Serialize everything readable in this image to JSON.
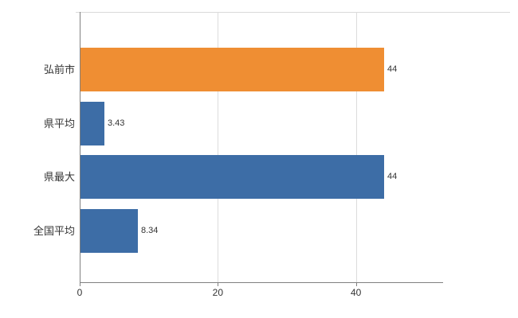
{
  "chart_data": {
    "type": "bar",
    "orientation": "horizontal",
    "title": "",
    "xlabel": "",
    "ylabel": "",
    "categories": [
      "弘前市",
      "県平均",
      "県最大",
      "全国平均"
    ],
    "values": [
      44,
      3.43,
      44,
      8.34
    ],
    "value_labels": [
      "44",
      "3.43",
      "44",
      "8.34"
    ],
    "bar_colors": [
      "#EF8E33",
      "#3D6DA6",
      "#3D6DA6",
      "#3D6DA6"
    ],
    "x_ticks": [
      0,
      20,
      40
    ],
    "x_tick_labels": [
      "0",
      "20",
      "40"
    ],
    "xlim": [
      0,
      52.5
    ],
    "grid": true,
    "legend": null
  },
  "colors": {
    "grid": "#dcdcdc",
    "axis": "#808080",
    "text": "#333333",
    "background": "#ffffff"
  }
}
